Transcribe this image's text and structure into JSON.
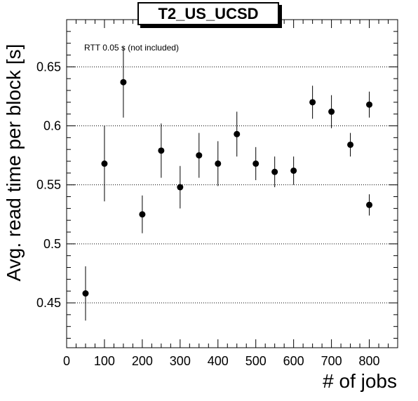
{
  "chart_data": {
    "type": "scatter",
    "title": "T2_US_UCSD",
    "xlabel": "# of jobs",
    "ylabel": "Avg. read time per block [s]",
    "annotation": "RTT 0.05 s (not included)",
    "xlim": [
      0,
      875
    ],
    "ylim": [
      0.412,
      0.69
    ],
    "x_ticks": [
      0,
      100,
      200,
      300,
      400,
      500,
      600,
      700,
      800
    ],
    "y_ticks": [
      0.45,
      0.5,
      0.55,
      0.6,
      0.65
    ],
    "y_tick_labels": [
      "0.45",
      "0.5",
      "0.55",
      "0.6",
      "0.65"
    ],
    "grid": "horizontal dotted at major y ticks",
    "points": [
      {
        "x": 50,
        "y": 0.458,
        "err": 0.023
      },
      {
        "x": 100,
        "y": 0.568,
        "err": 0.032
      },
      {
        "x": 150,
        "y": 0.637,
        "err": 0.03
      },
      {
        "x": 200,
        "y": 0.525,
        "err": 0.016
      },
      {
        "x": 250,
        "y": 0.579,
        "err": 0.023
      },
      {
        "x": 300,
        "y": 0.548,
        "err": 0.018
      },
      {
        "x": 350,
        "y": 0.575,
        "err": 0.019
      },
      {
        "x": 400,
        "y": 0.568,
        "err": 0.019
      },
      {
        "x": 450,
        "y": 0.593,
        "err": 0.019
      },
      {
        "x": 500,
        "y": 0.568,
        "err": 0.014
      },
      {
        "x": 550,
        "y": 0.561,
        "err": 0.013
      },
      {
        "x": 600,
        "y": 0.562,
        "err": 0.012
      },
      {
        "x": 650,
        "y": 0.62,
        "err": 0.014
      },
      {
        "x": 700,
        "y": 0.612,
        "err": 0.014
      },
      {
        "x": 750,
        "y": 0.584,
        "err": 0.01
      },
      {
        "x": 800,
        "y": 0.618,
        "err": 0.011
      },
      {
        "x": 800,
        "y": 0.533,
        "err": 0.009
      }
    ]
  }
}
